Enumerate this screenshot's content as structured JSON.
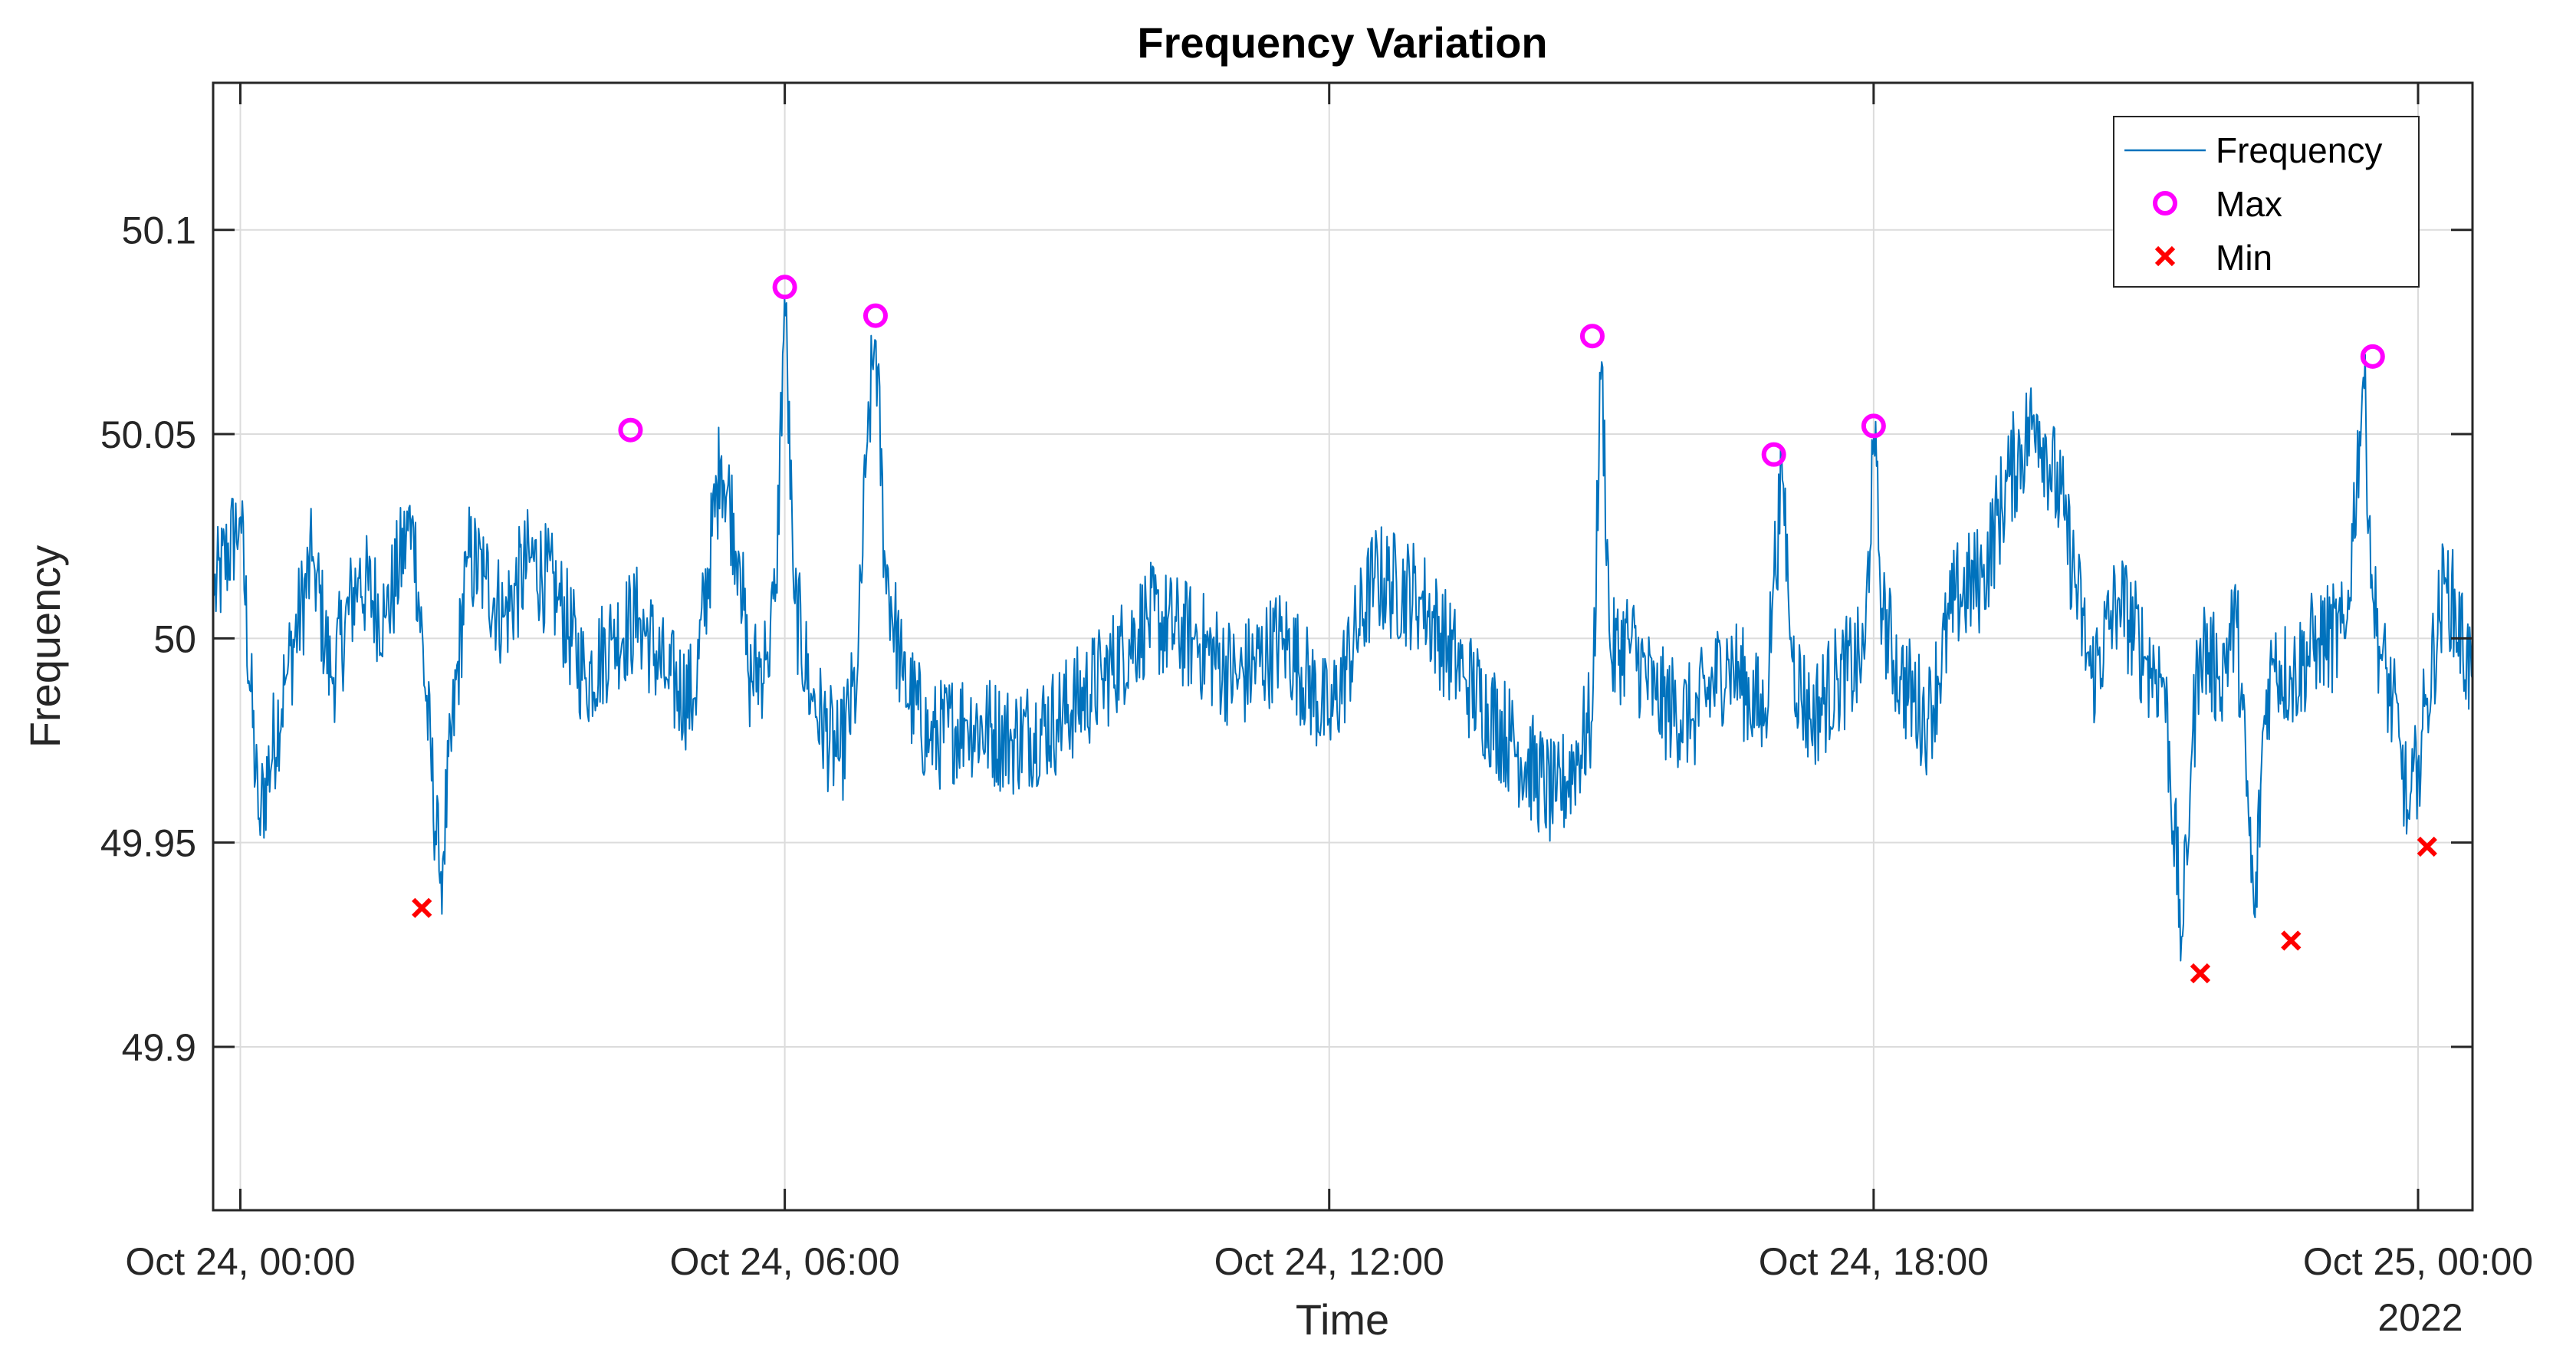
{
  "chart_data": {
    "type": "line",
    "title": "Frequency Variation",
    "xlabel": "Time",
    "ylabel": "Frequency",
    "x_unit": "hours since Oct 24, 00:00",
    "xlim": [
      -0.3,
      24.6
    ],
    "ylim": [
      49.86,
      50.136
    ],
    "x_ticks": [
      {
        "value": 0,
        "label": "Oct 24, 00:00"
      },
      {
        "value": 6,
        "label": "Oct 24, 06:00"
      },
      {
        "value": 12,
        "label": "Oct 24, 12:00"
      },
      {
        "value": 18,
        "label": "Oct 24, 18:00"
      },
      {
        "value": 24,
        "label": "Oct 25, 00:00"
      }
    ],
    "x_secondary_label": "2022",
    "y_ticks": [
      {
        "value": 49.9,
        "label": "49.9"
      },
      {
        "value": 49.95,
        "label": "49.95"
      },
      {
        "value": 50,
        "label": "50"
      },
      {
        "value": 50.05,
        "label": "50.05"
      },
      {
        "value": 50.1,
        "label": "50.1"
      }
    ],
    "grid": true,
    "legend_position": "top-right",
    "series": [
      {
        "name": "Frequency",
        "style": "line",
        "color": "#0072BD",
        "x": [
          -0.3,
          0.0,
          0.2,
          0.5,
          0.8,
          1.0,
          1.3,
          1.6,
          1.9,
          2.2,
          2.5,
          2.7,
          2.9,
          3.2,
          3.5,
          3.8,
          4.1,
          4.4,
          4.7,
          5.0,
          5.3,
          5.5,
          5.6,
          5.8,
          5.9,
          6.0,
          6.1,
          6.3,
          6.6,
          6.8,
          6.9,
          7.0,
          7.1,
          7.3,
          7.6,
          8.0,
          8.5,
          9.0,
          9.5,
          10.0,
          10.5,
          11.0,
          11.5,
          12.0,
          12.5,
          13.0,
          13.5,
          14.0,
          14.5,
          14.9,
          15.0,
          15.1,
          15.3,
          15.6,
          16.0,
          16.4,
          16.8,
          16.9,
          17.0,
          17.1,
          17.3,
          17.6,
          17.9,
          18.0,
          18.1,
          18.3,
          18.6,
          18.9,
          19.2,
          19.5,
          19.8,
          20.1,
          20.4,
          20.7,
          21.0,
          21.2,
          21.4,
          21.5,
          21.6,
          21.8,
          22.0,
          22.2,
          22.3,
          22.4,
          22.6,
          22.9,
          23.2,
          23.4,
          23.5,
          23.6,
          23.8,
          23.9,
          24.0,
          24.1,
          24.3,
          24.6
        ],
        "y": [
          50.01,
          50.03,
          49.955,
          49.99,
          50.02,
          49.99,
          50.015,
          50.005,
          50.03,
          49.94,
          50.02,
          50.015,
          50.005,
          50.02,
          50.01,
          49.99,
          50.0,
          50.005,
          49.99,
          49.985,
          50.045,
          50.02,
          49.99,
          49.995,
          50.01,
          50.085,
          50.01,
          49.985,
          49.97,
          49.99,
          50.045,
          50.075,
          50.02,
          49.99,
          49.975,
          49.98,
          49.975,
          49.98,
          49.99,
          50.005,
          50.0,
          49.99,
          50.0,
          49.98,
          50.015,
          50.01,
          49.99,
          49.975,
          49.96,
          49.98,
          50.07,
          49.995,
          50.0,
          49.985,
          49.98,
          49.995,
          49.98,
          50.015,
          50.04,
          49.995,
          49.98,
          49.99,
          49.995,
          50.05,
          50.005,
          49.99,
          49.98,
          50.01,
          50.015,
          50.04,
          50.055,
          50.03,
          49.99,
          50.01,
          49.995,
          49.99,
          49.925,
          49.97,
          50.0,
          49.99,
          50.005,
          49.93,
          49.98,
          49.995,
          49.99,
          50.0,
          50.0,
          50.065,
          50.01,
          49.995,
          49.975,
          49.955,
          49.97,
          49.985,
          50.015,
          49.99
        ]
      },
      {
        "name": "Max",
        "style": "marker-circle",
        "color": "#FF00FF",
        "x": [
          4.3,
          6.0,
          7.0,
          14.9,
          16.9,
          18.0,
          23.5
        ],
        "y": [
          50.051,
          50.086,
          50.079,
          50.074,
          50.045,
          50.052,
          50.069
        ]
      },
      {
        "name": "Min",
        "style": "marker-x",
        "color": "#FF0000",
        "x": [
          2.0,
          21.6,
          22.6,
          24.1
        ],
        "y": [
          49.934,
          49.918,
          49.926,
          49.949
        ]
      }
    ]
  }
}
